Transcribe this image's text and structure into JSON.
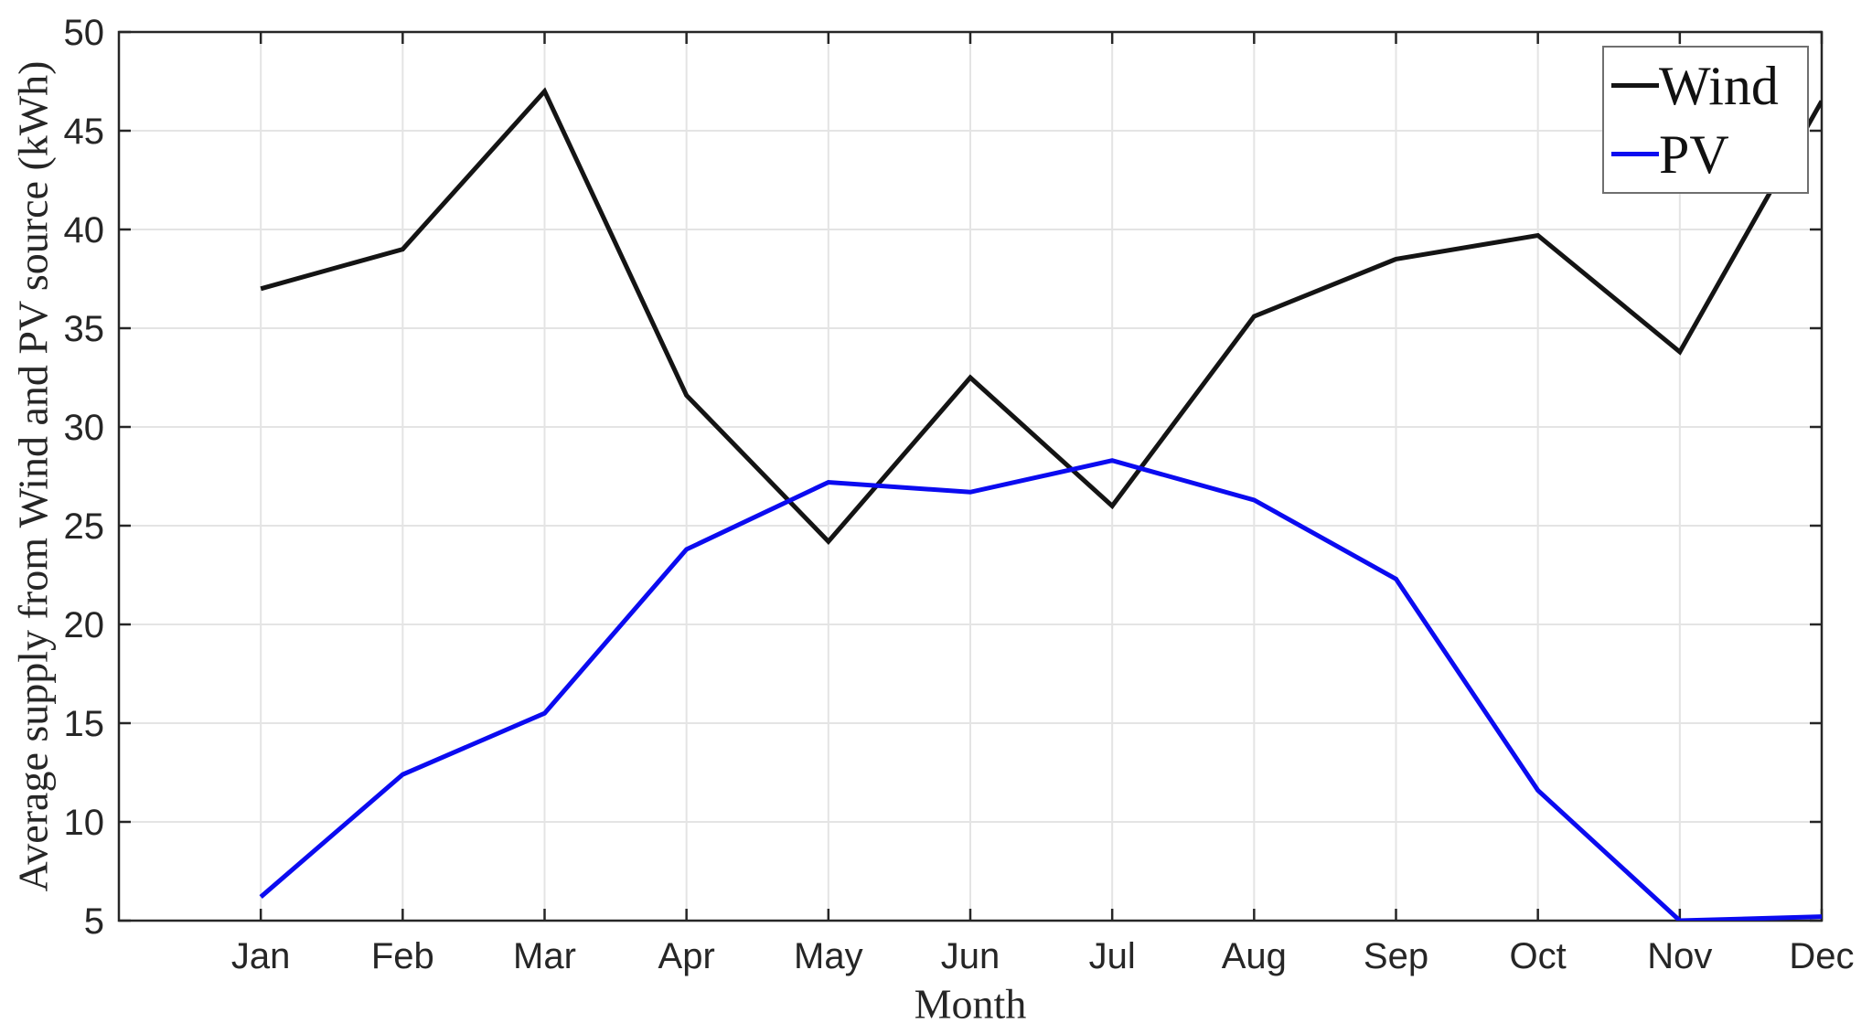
{
  "chart_data": {
    "type": "line",
    "categories": [
      "Jan",
      "Feb",
      "Mar",
      "Apr",
      "May",
      "Jun",
      "Jul",
      "Aug",
      "Sep",
      "Oct",
      "Nov",
      "Dec"
    ],
    "series": [
      {
        "name": "Wind",
        "color": "#141414",
        "values": [
          37.0,
          39.0,
          47.0,
          31.6,
          24.2,
          32.5,
          26.0,
          35.6,
          38.5,
          39.7,
          33.8,
          46.5
        ]
      },
      {
        "name": "PV",
        "color": "#0b0bf0",
        "values": [
          6.2,
          12.4,
          15.5,
          23.8,
          27.2,
          26.7,
          28.3,
          26.3,
          22.3,
          11.6,
          5.0,
          5.2
        ]
      }
    ],
    "title": "",
    "xlabel": "Month",
    "ylabel": "Average supply from Wind and PV source (kWh)",
    "ylim": [
      5,
      50
    ],
    "yticks": [
      5,
      10,
      15,
      20,
      25,
      30,
      35,
      40,
      45,
      50
    ],
    "grid": true,
    "legend_position": "top-right",
    "colors": {
      "grid": "#e4e4e4",
      "axis": "#262626",
      "tick_text": "#262626",
      "legend_border": "#6f6f6f",
      "background": "#ffffff"
    }
  }
}
